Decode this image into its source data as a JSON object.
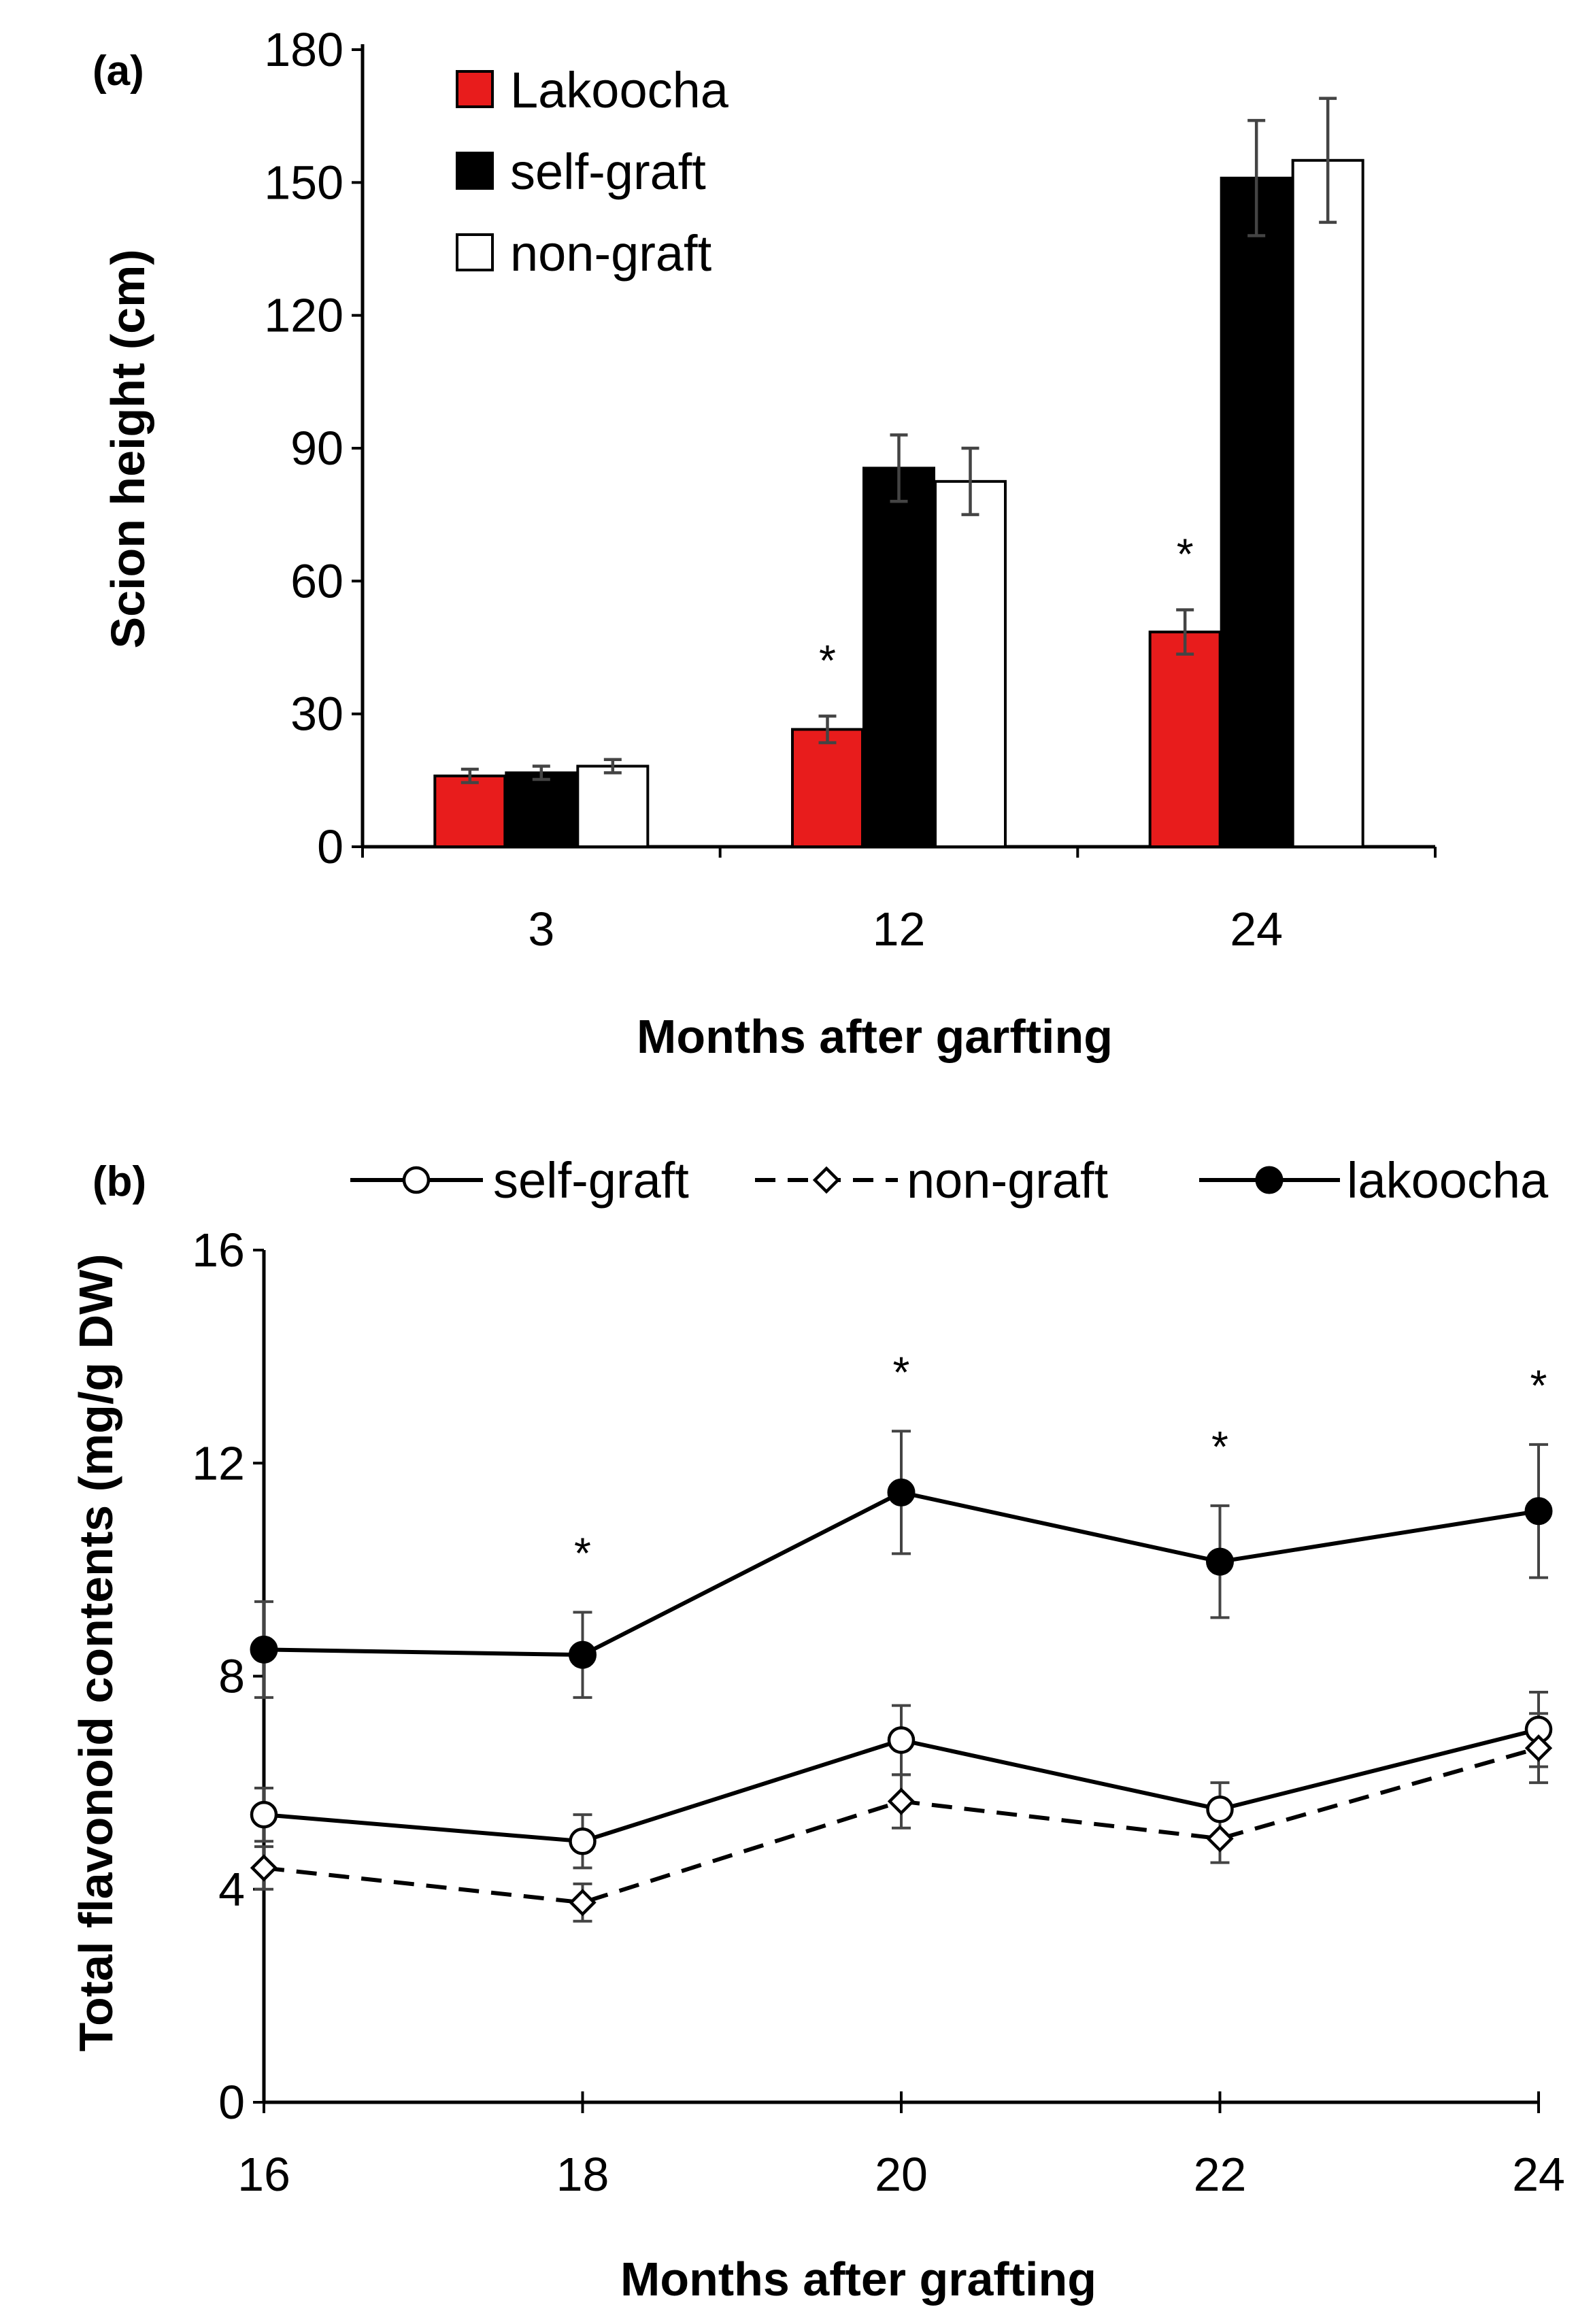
{
  "chart_data": [
    {
      "panel": "(a)",
      "type": "bar",
      "categories": [
        "3",
        "12",
        "24"
      ],
      "xlabel": "Months after garfting",
      "ylabel": "Scion height (cm)",
      "ylim": [
        0,
        180
      ],
      "yticks": [
        "0",
        "30",
        "60",
        "90",
        "120",
        "150",
        "180"
      ],
      "legend_position": "top-left",
      "series": [
        {
          "name": "Lakoocha",
          "color": "#e81c1c",
          "values": [
            16,
            26.5,
            48.5
          ],
          "errors": [
            1.5,
            3,
            5
          ]
        },
        {
          "name": "self-graft",
          "color": "#000000",
          "values": [
            16.7,
            85.5,
            151
          ],
          "errors": [
            1.5,
            7.5,
            13
          ]
        },
        {
          "name": "non-graft",
          "color": "#ffffff",
          "values": [
            18.2,
            82.5,
            155
          ],
          "errors": [
            1.5,
            7.5,
            14
          ]
        }
      ],
      "annotations": [
        {
          "text": "*",
          "category": "12"
        },
        {
          "text": "*",
          "category": "24"
        }
      ]
    },
    {
      "panel": "(b)",
      "type": "line",
      "x": [
        16,
        18,
        20,
        22,
        24
      ],
      "xticks": [
        "16",
        "18",
        "20",
        "22",
        "24"
      ],
      "xlabel": "Months after grafting",
      "ylabel": "Total flavonoid contents (mg/g DW)",
      "xlim": [
        16,
        24
      ],
      "ylim": [
        0,
        16
      ],
      "yticks": [
        "0",
        "4",
        "8",
        "12",
        "16"
      ],
      "legend_position": "top",
      "series": [
        {
          "name": "self-graft",
          "marker": "open-circle",
          "line": "solid",
          "values": [
            5.4,
            4.9,
            6.8,
            5.5,
            7.0
          ],
          "errors": [
            0.5,
            0.5,
            0.65,
            0.5,
            0.7
          ]
        },
        {
          "name": "non-graft",
          "marker": "open-diamond",
          "line": "dashed",
          "values": [
            4.4,
            3.75,
            5.65,
            4.95,
            6.65
          ],
          "errors": [
            0.4,
            0.35,
            0.5,
            0.45,
            0.65
          ]
        },
        {
          "name": "lakoocha",
          "marker": "filled-circle",
          "line": "solid",
          "values": [
            8.5,
            8.4,
            11.45,
            10.15,
            11.1
          ],
          "errors": [
            0.9,
            0.8,
            1.15,
            1.05,
            1.25
          ]
        }
      ],
      "annotations": [
        {
          "text": "*",
          "x": 18
        },
        {
          "text": "*",
          "x": 20
        },
        {
          "text": "*",
          "x": 22
        },
        {
          "text": "*",
          "x": 24
        }
      ]
    }
  ]
}
